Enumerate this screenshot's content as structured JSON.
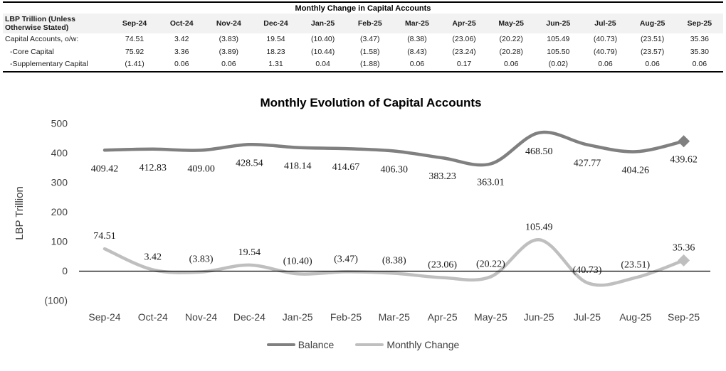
{
  "table": {
    "title": "Monthly Change in Capital Accounts",
    "row_header_label": "LBP Trillion (Unless Otherwise Stated)",
    "columns": [
      "Sep-24",
      "Oct-24",
      "Nov-24",
      "Dec-24",
      "Jan-25",
      "Feb-25",
      "Mar-25",
      "Apr-25",
      "May-25",
      "Jun-25",
      "Jul-25",
      "Aug-25",
      "Sep-25"
    ],
    "rows": [
      {
        "label": "Capital Accounts, o/w:",
        "indent": false,
        "values": [
          "74.51",
          "3.42",
          "(3.83)",
          "19.54",
          "(10.40)",
          "(3.47)",
          "(8.38)",
          "(23.06)",
          "(20.22)",
          "105.49",
          "(40.73)",
          "(23.51)",
          "35.36"
        ]
      },
      {
        "label": "-Core Capital",
        "indent": true,
        "values": [
          "75.92",
          "3.36",
          "(3.89)",
          "18.23",
          "(10.44)",
          "(1.58)",
          "(8.43)",
          "(23.24)",
          "(20.28)",
          "105.50",
          "(40.79)",
          "(23.57)",
          "35.30"
        ]
      },
      {
        "label": "-Supplementary Capital",
        "indent": true,
        "values": [
          "(1.41)",
          "0.06",
          "0.06",
          "1.31",
          "0.04",
          "(1.88)",
          "0.06",
          "0.17",
          "0.06",
          "(0.02)",
          "0.06",
          "0.06",
          "0.06"
        ]
      }
    ]
  },
  "chart_data": {
    "type": "line",
    "title": "Monthly Evolution of Capital Accounts",
    "ylabel": "LBP Trillion",
    "categories": [
      "Sep-24",
      "Oct-24",
      "Nov-24",
      "Dec-24",
      "Jan-25",
      "Feb-25",
      "Mar-25",
      "Apr-25",
      "May-25",
      "Jun-25",
      "Jul-25",
      "Aug-25",
      "Sep-25"
    ],
    "series": [
      {
        "name": "Balance",
        "color": "#808080",
        "label_position": "below",
        "end_marker": "diamond",
        "values": [
          409.42,
          412.83,
          409.0,
          428.54,
          418.14,
          414.67,
          406.3,
          383.23,
          363.01,
          468.5,
          427.77,
          404.26,
          439.62
        ],
        "labels": [
          "409.42",
          "412.83",
          "409.00",
          "428.54",
          "418.14",
          "414.67",
          "406.30",
          "383.23",
          "363.01",
          "468.50",
          "427.77",
          "404.26",
          "439.62"
        ]
      },
      {
        "name": "Monthly Change",
        "color": "#BFBFBF",
        "label_position": "above",
        "end_marker": "diamond",
        "values": [
          74.51,
          3.42,
          -3.83,
          19.54,
          -10.4,
          -3.47,
          -8.38,
          -23.06,
          -20.22,
          105.49,
          -40.73,
          -23.51,
          35.36
        ],
        "labels": [
          "74.51",
          "3.42",
          "(3.83)",
          "19.54",
          "(10.40)",
          "(3.47)",
          "(8.38)",
          "(23.06)",
          "(20.22)",
          "105.49",
          "(40.73)",
          "(23.51)",
          "35.36"
        ]
      }
    ],
    "yticks": [
      500,
      400,
      300,
      200,
      100,
      0,
      -100
    ],
    "ytick_labels": [
      "500",
      "400",
      "300",
      "200",
      "100",
      "0",
      "(100)"
    ],
    "ylim": [
      -150,
      550
    ],
    "grid": false,
    "smooth_lines": true,
    "legend_position": "bottom"
  }
}
